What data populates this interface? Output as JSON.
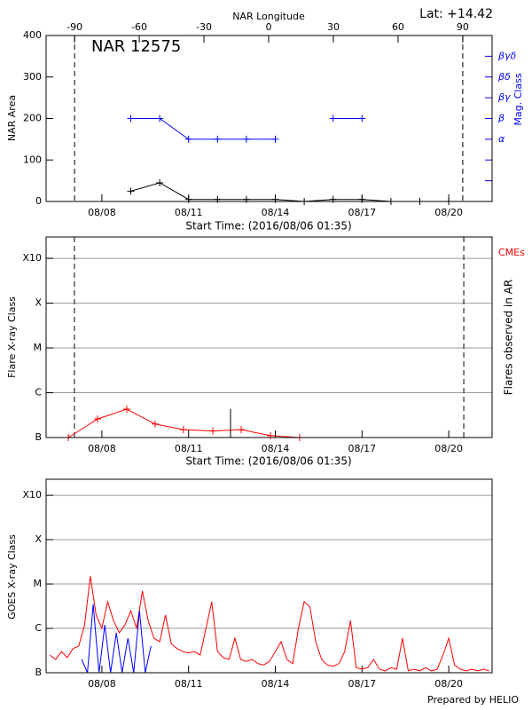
{
  "chart_data": [
    {
      "type": "line",
      "title": "NAR 12575",
      "annotation": "Lat: +14.42",
      "xlabel": "Start Time: (2016/08/06 01:35)",
      "x2label": "NAR Longitude",
      "ylabel": "NAR Area",
      "y2label": "Mag. Class",
      "xlim": [
        6.07,
        21.5
      ],
      "xticks": [
        {
          "value": 8,
          "label": "08/08"
        },
        {
          "value": 11,
          "label": "08/11"
        },
        {
          "value": 14,
          "label": "08/14"
        },
        {
          "value": 17,
          "label": "08/17"
        },
        {
          "value": 20,
          "label": "08/20"
        }
      ],
      "x2lim": [
        -103.2,
        103.6
      ],
      "x2ticks": [
        -90,
        -60,
        -30,
        0,
        30,
        60,
        90
      ],
      "limb_lines": [
        -90,
        90
      ],
      "ylim": [
        0,
        400
      ],
      "yticks": [
        0,
        100,
        200,
        300,
        400
      ],
      "y2lim": [
        0,
        8
      ],
      "y2ticks": [
        {
          "value": 1,
          "label": null
        },
        {
          "value": 2,
          "label": null
        },
        {
          "value": 3,
          "label": "α"
        },
        {
          "value": 4,
          "label": "β"
        },
        {
          "value": 5,
          "label": "βγ"
        },
        {
          "value": 6,
          "label": "βδ"
        },
        {
          "value": 7,
          "label": "βγδ"
        }
      ],
      "y2color": "#0000ff",
      "x": [
        9,
        10,
        11,
        12,
        13,
        14,
        15,
        16,
        17,
        18,
        19,
        20
      ],
      "series": [
        {
          "color": "#000000",
          "values": [
            25,
            45,
            5,
            5,
            5,
            5,
            0,
            5,
            5,
            0,
            0,
            0
          ]
        },
        {
          "color": "#0000ff",
          "axis": "y2",
          "values": [
            4,
            4,
            3,
            3,
            3,
            3,
            null,
            4,
            4,
            null,
            null,
            null
          ]
        }
      ]
    },
    {
      "type": "line",
      "xlabel": "Start Time: (2016/08/06 01:35)",
      "ylabel": "Flare X-ray Class",
      "y2label": "Flares observed in AR",
      "annotation": "CMEs",
      "annotation_color": "#ff0000",
      "log_scale": true,
      "grid": true,
      "xlim": [
        6.07,
        21.5
      ],
      "xticks": [
        {
          "value": 8,
          "label": "08/08"
        },
        {
          "value": 11,
          "label": "08/11"
        },
        {
          "value": 14,
          "label": "08/14"
        },
        {
          "value": 17,
          "label": "08/17"
        },
        {
          "value": 20,
          "label": "08/20"
        }
      ],
      "limb_lines": [
        7.05,
        20.52
      ],
      "ylim": [
        1e-07,
        0.003
      ],
      "yticks": [
        {
          "value": 1e-07,
          "label": "B"
        },
        {
          "value": 1e-06,
          "label": "C"
        },
        {
          "value": 1e-05,
          "label": "M"
        },
        {
          "value": 0.0001,
          "label": "X"
        },
        {
          "value": 0.001,
          "label": "X10"
        }
      ],
      "x": [
        6.84,
        7.85,
        8.86,
        9.84,
        10.82,
        11.84,
        12.82,
        13.83,
        14.84
      ],
      "series": [
        {
          "color": "#ff0000",
          "markers": true,
          "values": [
            1e-07,
            2.6e-07,
            4.3e-07,
            2e-07,
            1.5e-07,
            1.4e-07,
            1.5e-07,
            1.1e-07,
            1e-07
          ]
        }
      ],
      "flares": {
        "color": "#000000",
        "x": [
          12.45
        ],
        "values": [
          4.3e-07
        ]
      }
    },
    {
      "type": "line",
      "ylabel": "GOES X-ray Class",
      "footer": "Prepared by HELIO",
      "log_scale": true,
      "grid": true,
      "xlim": [
        6.07,
        21.5
      ],
      "xticks": [
        {
          "value": 8,
          "label": "08/08"
        },
        {
          "value": 11,
          "label": "08/11"
        },
        {
          "value": 14,
          "label": "08/14"
        },
        {
          "value": 17,
          "label": "08/17"
        },
        {
          "value": 20,
          "label": "08/20"
        }
      ],
      "ylim": [
        1e-07,
        0.0023
      ],
      "yticks": [
        {
          "value": 1e-07,
          "label": "B"
        },
        {
          "value": 1e-06,
          "label": "C"
        },
        {
          "value": 1e-05,
          "label": "M"
        },
        {
          "value": 0.0001,
          "label": "X"
        },
        {
          "value": 0.001,
          "label": "X10"
        }
      ],
      "series": [
        {
          "color": "#ff0000",
          "x": [
            6.2,
            6.4,
            6.6,
            6.8,
            7.0,
            7.2,
            7.4,
            7.6,
            7.8,
            8.0,
            8.2,
            8.4,
            8.6,
            8.8,
            9.0,
            9.2,
            9.4,
            9.6,
            9.8,
            10.0,
            10.2,
            10.4,
            10.6,
            10.8,
            11.0,
            11.2,
            11.4,
            11.6,
            11.8,
            12.0,
            12.2,
            12.4,
            12.6,
            12.8,
            13.0,
            13.2,
            13.4,
            13.6,
            13.8,
            14.0,
            14.2,
            14.4,
            14.6,
            14.8,
            15.0,
            15.2,
            15.4,
            15.6,
            15.8,
            16.0,
            16.2,
            16.4,
            16.6,
            16.8,
            17.0,
            17.2,
            17.4,
            17.6,
            17.8,
            18.0,
            18.2,
            18.4,
            18.6,
            18.8,
            19.0,
            19.2,
            19.4,
            19.6,
            19.8,
            20.0,
            20.2,
            20.4,
            20.6,
            20.8,
            21.0,
            21.2,
            21.4
          ],
          "values": [
            2.5e-07,
            2e-07,
            3e-07,
            2.2e-07,
            3.5e-07,
            4e-07,
            1.2e-06,
            1.5e-05,
            2e-06,
            1e-06,
            4e-06,
            1.5e-06,
            8e-07,
            1.2e-06,
            2.5e-06,
            1e-06,
            7e-06,
            1.5e-06,
            6e-07,
            5e-07,
            2e-06,
            4.5e-07,
            3.5e-07,
            3e-07,
            2.8e-07,
            3e-07,
            2.5e-07,
            1e-06,
            4e-06,
            3e-07,
            2.2e-07,
            2e-07,
            6e-07,
            2e-07,
            1.8e-07,
            2e-07,
            1.6e-07,
            1.5e-07,
            1.8e-07,
            3e-07,
            5e-07,
            2e-07,
            1.6e-07,
            1e-06,
            4e-06,
            3e-06,
            5e-07,
            2e-07,
            1.5e-07,
            1.4e-07,
            1.6e-07,
            3e-07,
            1.5e-06,
            1.3e-07,
            1.2e-07,
            1.3e-07,
            2e-07,
            1.2e-07,
            1.1e-07,
            1.3e-07,
            1.2e-07,
            6e-07,
            1.1e-07,
            1.2e-07,
            1.1e-07,
            1.3e-07,
            1.1e-07,
            1.2e-07,
            2.5e-07,
            6e-07,
            1.5e-07,
            1.2e-07,
            1.1e-07,
            1.2e-07,
            1.1e-07,
            1.2e-07,
            1.1e-07
          ]
        },
        {
          "color": "#0000ff",
          "x": [
            7.3,
            7.5,
            7.7,
            7.9,
            8.1,
            8.3,
            8.5,
            8.7,
            8.9,
            9.1,
            9.3,
            9.5,
            9.7
          ],
          "values": [
            2e-07,
            1e-07,
            3.5e-06,
            1e-07,
            1.2e-06,
            1e-07,
            8e-07,
            1e-07,
            6e-07,
            1e-07,
            2.5e-06,
            1e-07,
            4e-07
          ]
        }
      ]
    }
  ]
}
